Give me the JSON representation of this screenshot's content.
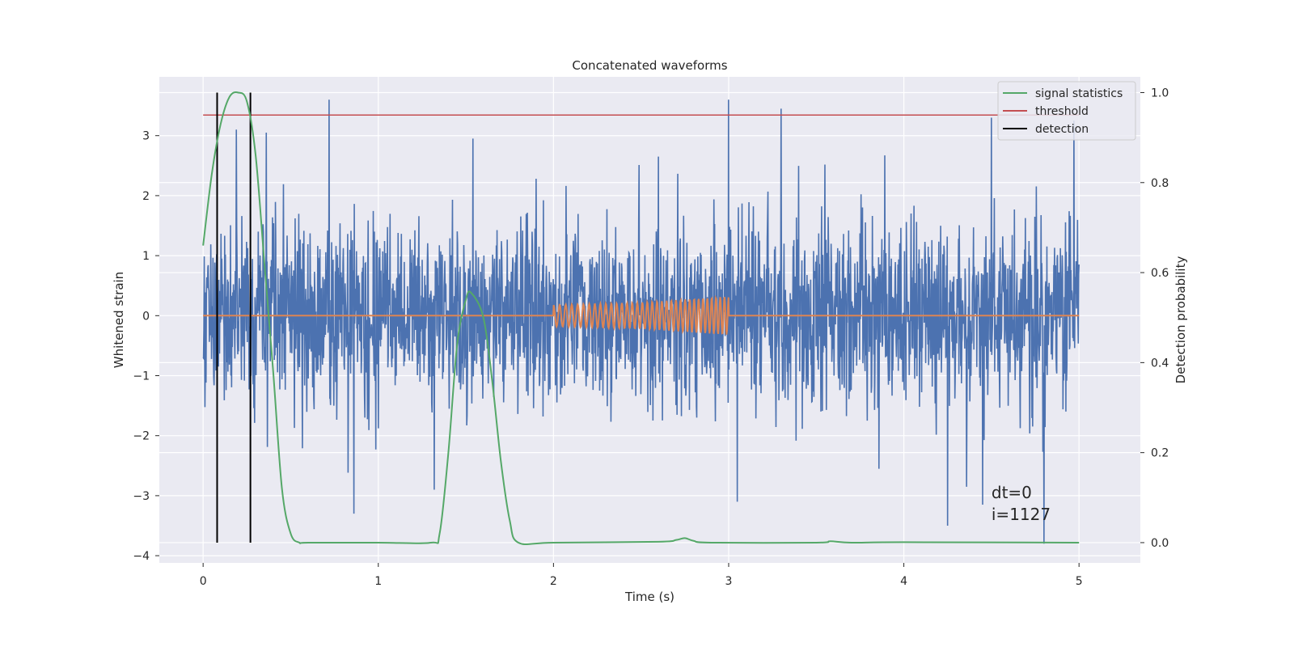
{
  "chart_data": {
    "type": "line",
    "title": "Concatenated waveforms",
    "xlabel": "Time (s)",
    "ylabel": "Whitened strain",
    "y2label": "Detection probability",
    "xlim": [
      -0.25,
      5.35
    ],
    "ylim": [
      -4.12,
      3.98
    ],
    "y2lim": [
      -0.045,
      1.035
    ],
    "xticks": [
      0,
      1,
      2,
      3,
      4,
      5
    ],
    "xtick_labels": [
      "0",
      "1",
      "2",
      "3",
      "4",
      "5"
    ],
    "yticks": [
      -4,
      -3,
      -2,
      -1,
      0,
      1,
      2,
      3
    ],
    "ytick_labels": [
      "−4",
      "−3",
      "−2",
      "−1",
      "0",
      "1",
      "2",
      "3"
    ],
    "y2ticks": [
      0.0,
      0.2,
      0.4,
      0.6,
      0.8,
      1.0
    ],
    "y2tick_labels": [
      "0.0",
      "0.2",
      "0.4",
      "0.6",
      "0.8",
      "1.0"
    ],
    "grid": true,
    "legend_position": "top-right",
    "legend": [
      {
        "name": "signal statistics",
        "color": "#55a868"
      },
      {
        "name": "threshold",
        "color": "#c44e52"
      },
      {
        "name": "detection",
        "color": "#000000"
      }
    ],
    "annotation_lines": [
      "dt=0",
      "i=1127"
    ],
    "series": [
      {
        "kind": "noise",
        "axis": "left",
        "color": "#4c72b0",
        "x_range": [
          0,
          5
        ],
        "typical_range": [
          -1.8,
          1.8
        ],
        "peaks": [
          {
            "x": 0.72,
            "y": 3.6
          },
          {
            "x": 3.0,
            "y": 3.6
          },
          {
            "x": 3.3,
            "y": 3.45
          },
          {
            "x": 0.19,
            "y": 3.1
          },
          {
            "x": 0.36,
            "y": 3.05
          },
          {
            "x": 4.5,
            "y": 3.3
          },
          {
            "x": 4.97,
            "y": 3.25
          },
          {
            "x": 4.8,
            "y": -3.8
          },
          {
            "x": 4.25,
            "y": -3.5
          },
          {
            "x": 0.86,
            "y": -3.3
          },
          {
            "x": 1.32,
            "y": -2.9
          },
          {
            "x": 3.05,
            "y": -3.1
          },
          {
            "x": 4.45,
            "y": -3.15
          },
          {
            "x": 1.54,
            "y": 2.95
          },
          {
            "x": 2.6,
            "y": 2.65
          }
        ]
      },
      {
        "kind": "chirp",
        "axis": "left",
        "color": "#dd8452",
        "x": [
          0,
          2,
          2.5,
          3,
          5
        ],
        "amplitude": [
          0,
          0.18,
          0.22,
          0.32,
          0
        ],
        "chirp_range": [
          2,
          3
        ],
        "cycles": 35
      },
      {
        "name": "signal statistics",
        "axis": "right",
        "color": "#55a868",
        "x": [
          0.0,
          0.05,
          0.1,
          0.15,
          0.2,
          0.25,
          0.3,
          0.35,
          0.4,
          0.45,
          0.5,
          0.55,
          0.6,
          1.0,
          1.3,
          1.35,
          1.4,
          1.45,
          1.5,
          1.53,
          1.6,
          1.65,
          1.7,
          1.75,
          1.8,
          2.0,
          2.6,
          2.7,
          2.75,
          2.8,
          2.9,
          3.5,
          3.58,
          3.7,
          4.0,
          5.0
        ],
        "y": [
          0.66,
          0.82,
          0.93,
          0.99,
          1.0,
          0.98,
          0.86,
          0.62,
          0.38,
          0.12,
          0.02,
          0.0,
          0.0,
          0.0,
          0.0,
          0.02,
          0.2,
          0.44,
          0.54,
          0.555,
          0.5,
          0.36,
          0.18,
          0.05,
          0.0,
          0.0,
          0.002,
          0.006,
          0.01,
          0.004,
          0.0,
          0.0,
          0.003,
          0.0,
          0.001,
          0.0
        ]
      },
      {
        "name": "threshold",
        "axis": "right",
        "color": "#c44e52",
        "x": [
          0,
          5
        ],
        "y": [
          0.95,
          0.95
        ]
      },
      {
        "name": "detection",
        "axis": "right",
        "color": "#000000",
        "vlines_x": [
          0.08,
          0.27
        ],
        "y_range": [
          0,
          1.0
        ]
      }
    ]
  }
}
